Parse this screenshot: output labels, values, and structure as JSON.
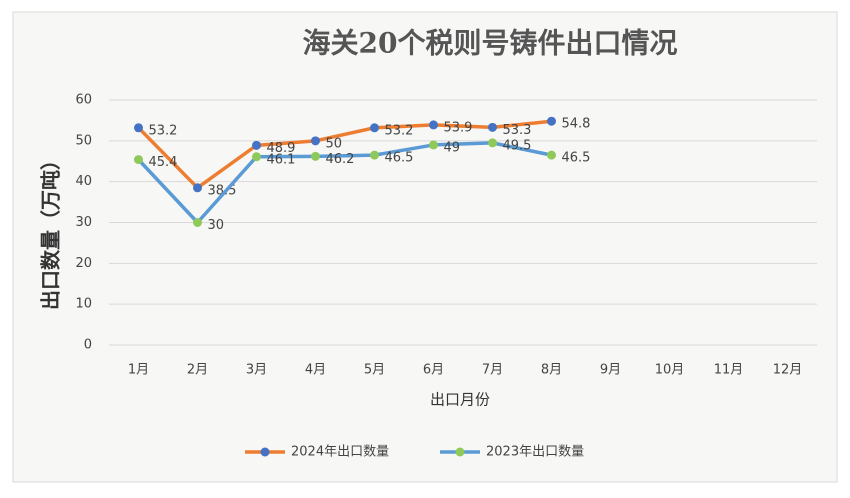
{
  "chart_data": {
    "type": "line",
    "title": "海关20个税则号铸件出口情况",
    "x_label": "出口月份",
    "y_label": "出口数量（万吨）",
    "categories": [
      "1月",
      "2月",
      "3月",
      "4月",
      "5月",
      "6月",
      "7月",
      "8月",
      "9月",
      "10月",
      "11月",
      "12月"
    ],
    "series": [
      {
        "name": "2024年出口数量",
        "color": "#ed7d31",
        "marker_color": "#4472c4",
        "values": [
          53.2,
          38.5,
          48.9,
          50,
          53.2,
          53.9,
          53.3,
          54.8,
          null,
          null,
          null,
          null
        ]
      },
      {
        "name": "2023年出口数量",
        "color": "#5b9bd5",
        "marker_color": "#8fc95a",
        "values": [
          45.4,
          30,
          46.1,
          46.2,
          46.5,
          49,
          49.5,
          46.5,
          null,
          null,
          null,
          null
        ]
      }
    ],
    "ylim": [
      0,
      60
    ],
    "yticks": [
      0,
      10,
      20,
      30,
      40,
      50,
      60
    ],
    "grid": true,
    "legend": "bottom"
  }
}
